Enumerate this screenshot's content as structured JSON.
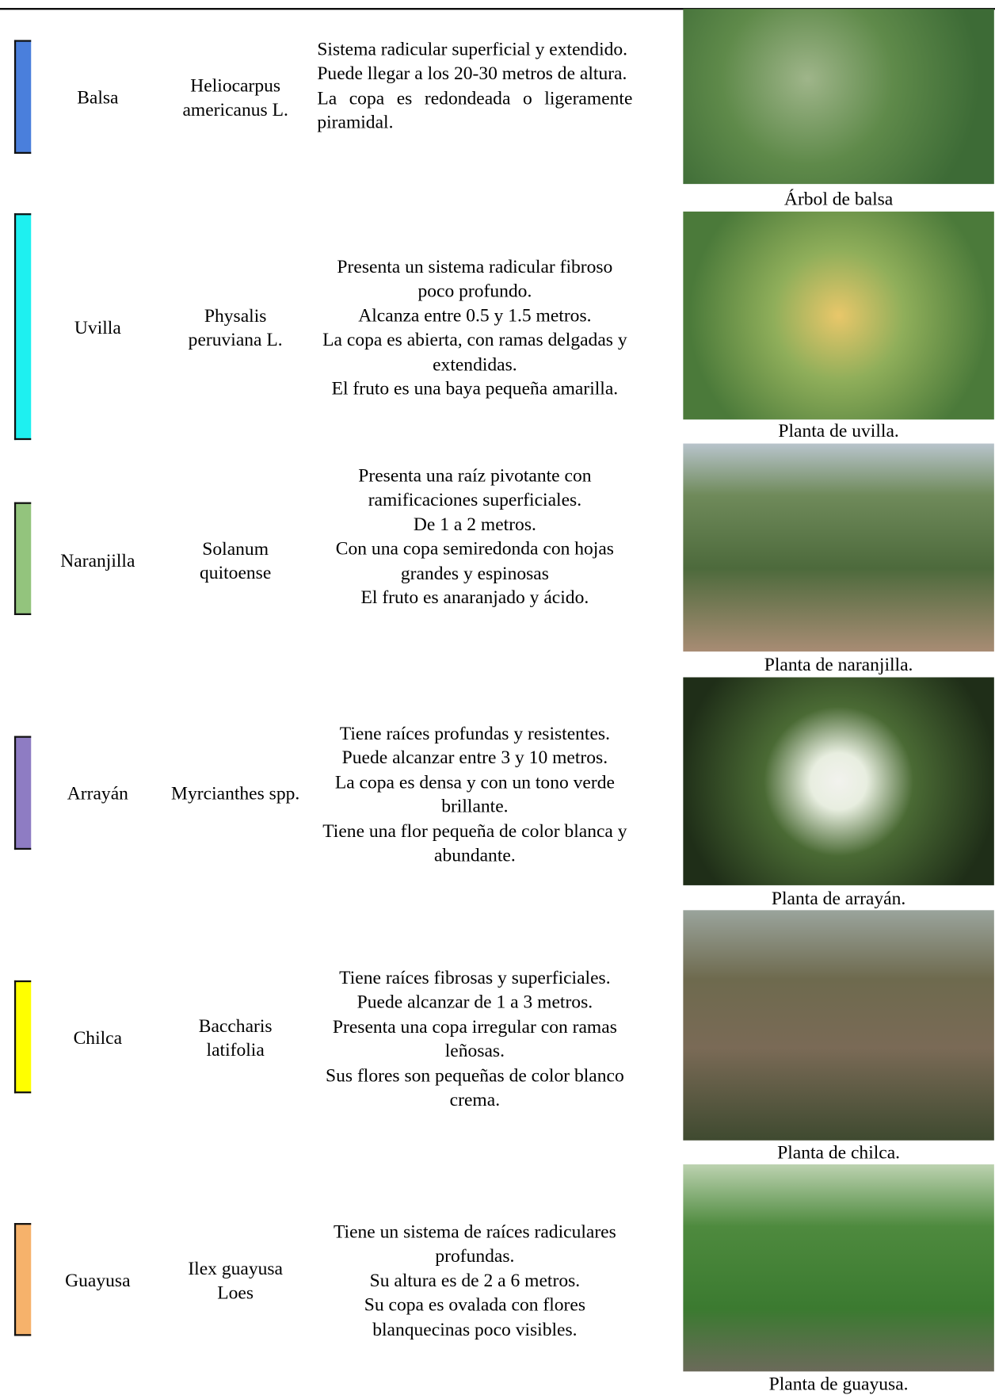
{
  "table": {
    "rows": [
      {
        "common_name": "Balsa",
        "scientific_name": "Heliocarpus americanus L.",
        "description": [
          "Sistema radicular superficial y extendido.",
          "Puede llegar a los 20-30 metros de altura.",
          "La copa es redondeada o ligeramente piramidal."
        ],
        "caption": "Árbol de balsa",
        "color": "#4a7fdc"
      },
      {
        "common_name": "Uvilla",
        "scientific_name": "Physalis peruviana L.",
        "description": [
          "Presenta un sistema radicular fibroso poco profundo.",
          "Alcanza entre 0.5 y 1.5 metros.",
          "La copa es abierta, con ramas delgadas y extendidas.",
          "El fruto es una baya pequeña amarilla."
        ],
        "caption": "Planta de uvilla.",
        "color": "#1ef0f0"
      },
      {
        "common_name": "Naranjilla",
        "scientific_name": "Solanum quitoense",
        "description": [
          "Presenta una raíz pivotante con ramificaciones superficiales.",
          "De 1 a 2 metros.",
          "Con una copa semiredonda con hojas grandes y espinosas",
          "El fruto es anaranjado y ácido."
        ],
        "caption": "Planta de naranjilla.",
        "color": "#93c47d"
      },
      {
        "common_name": "Arrayán",
        "scientific_name": "Myrcianthes spp.",
        "description": [
          "Tiene raíces profundas y resistentes.",
          "Puede alcanzar entre 3 y 10 metros.",
          "La copa es densa y con un tono verde brillante.",
          "Tiene una flor pequeña de color blanca y abundante."
        ],
        "caption": "Planta de arrayán.",
        "color": "#8e7cc3"
      },
      {
        "common_name": "Chilca",
        "scientific_name": "Baccharis latifolia",
        "description": [
          "Tiene raíces fibrosas y superficiales.",
          "Puede alcanzar de 1 a 3 metros.",
          "Presenta una copa irregular con ramas leñosas.",
          "Sus flores son pequeñas de color blanco crema."
        ],
        "caption": "Planta de chilca.",
        "color": "#ffff00"
      },
      {
        "common_name": "Guayusa",
        "scientific_name": "Ilex guayusa Loes",
        "description": [
          "Tiene un sistema de raíces radiculares profundas.",
          "Su altura es de 2 a 6 metros.",
          "Su copa es ovalada con flores blanquecinas poco visibles."
        ],
        "caption": "Planta de guayusa.",
        "color": "#f6b26b"
      }
    ]
  }
}
